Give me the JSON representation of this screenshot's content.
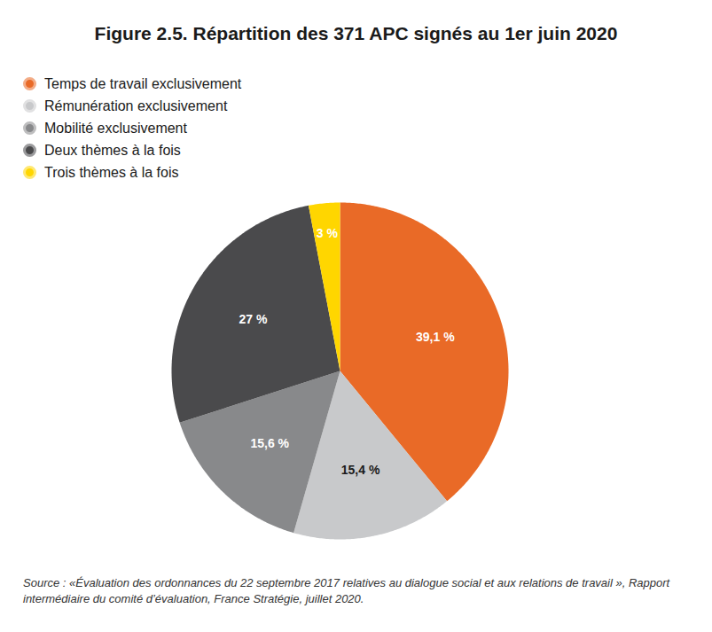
{
  "chart_data": {
    "type": "pie",
    "title": "Figure 2.5. Répartition des 371 APC signés au 1er juin 2020",
    "categories": [
      "Temps de travail exclusivement",
      "Rémunération exclusivement",
      "Mobilité exclusivement",
      "Deux thèmes à la fois",
      "Trois thèmes à la fois"
    ],
    "values": [
      39.1,
      15.4,
      15.6,
      27,
      3
    ],
    "value_labels": [
      "39,1 %",
      "15,4 %",
      "15,6 %",
      "27 %",
      "3 %"
    ],
    "colors": [
      "#e96a27",
      "#c8c9cb",
      "#88898b",
      "#4a4a4c",
      "#ffd600"
    ],
    "data_labels": true,
    "legend": "top-left",
    "source": "Source : «Évaluation des ordonnances du 22 septembre 2017 relatives au dialogue social et aux relations de travail », Rapport intermédiaire du comité d’évaluation, France Stratégie, juillet 2020."
  }
}
